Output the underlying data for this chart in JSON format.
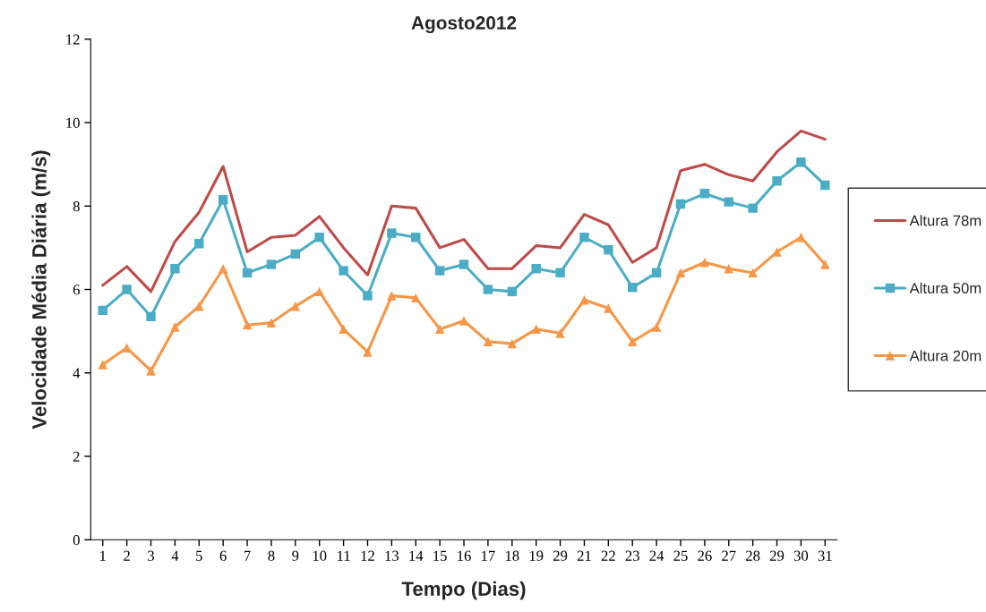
{
  "chart_data": {
    "type": "line",
    "title": "Agosto2012",
    "xlabel": "Tempo (Dias)",
    "ylabel": "Velocidade Média Diária (m/s)",
    "categories": [
      "1",
      "2",
      "3",
      "4",
      "5",
      "6",
      "7",
      "8",
      "9",
      "10",
      "11",
      "12",
      "13",
      "14",
      "15",
      "16",
      "17",
      "18",
      "19",
      "29",
      "21",
      "22",
      "23",
      "24",
      "25",
      "26",
      "27",
      "28",
      "29",
      "30",
      "31"
    ],
    "ylim": [
      0,
      12
    ],
    "yticks": [
      0,
      2,
      4,
      6,
      8,
      10,
      12
    ],
    "grid": false,
    "legend": "right",
    "series": [
      {
        "name": "Altura 78m",
        "color": "#be4b48",
        "marker": "none",
        "values": [
          6.1,
          6.55,
          5.95,
          7.15,
          7.85,
          8.95,
          6.9,
          7.25,
          7.3,
          7.75,
          7.0,
          6.35,
          8.0,
          7.95,
          7.0,
          7.2,
          6.5,
          6.5,
          7.05,
          7.0,
          7.8,
          7.55,
          6.65,
          7.0,
          8.85,
          9.0,
          8.75,
          8.6,
          9.3,
          9.8,
          9.6
        ]
      },
      {
        "name": "Altura 50m",
        "color": "#4bacc6",
        "marker": "square",
        "values": [
          5.5,
          6.0,
          5.35,
          6.5,
          7.1,
          8.15,
          6.4,
          6.6,
          6.85,
          7.25,
          6.45,
          5.85,
          7.35,
          7.25,
          6.45,
          6.6,
          6.0,
          5.95,
          6.5,
          6.4,
          7.25,
          6.95,
          6.05,
          6.4,
          8.05,
          8.3,
          8.1,
          7.95,
          8.6,
          9.05,
          8.5
        ]
      },
      {
        "name": "Altura 20m",
        "color": "#f79646",
        "marker": "triangle",
        "values": [
          4.2,
          4.6,
          4.05,
          5.1,
          5.6,
          6.5,
          5.15,
          5.2,
          5.6,
          5.95,
          5.05,
          4.5,
          5.85,
          5.8,
          5.05,
          5.25,
          4.75,
          4.7,
          5.05,
          4.95,
          5.75,
          5.55,
          4.75,
          5.1,
          6.4,
          6.65,
          6.5,
          6.4,
          6.9,
          7.25,
          6.6
        ]
      }
    ]
  }
}
